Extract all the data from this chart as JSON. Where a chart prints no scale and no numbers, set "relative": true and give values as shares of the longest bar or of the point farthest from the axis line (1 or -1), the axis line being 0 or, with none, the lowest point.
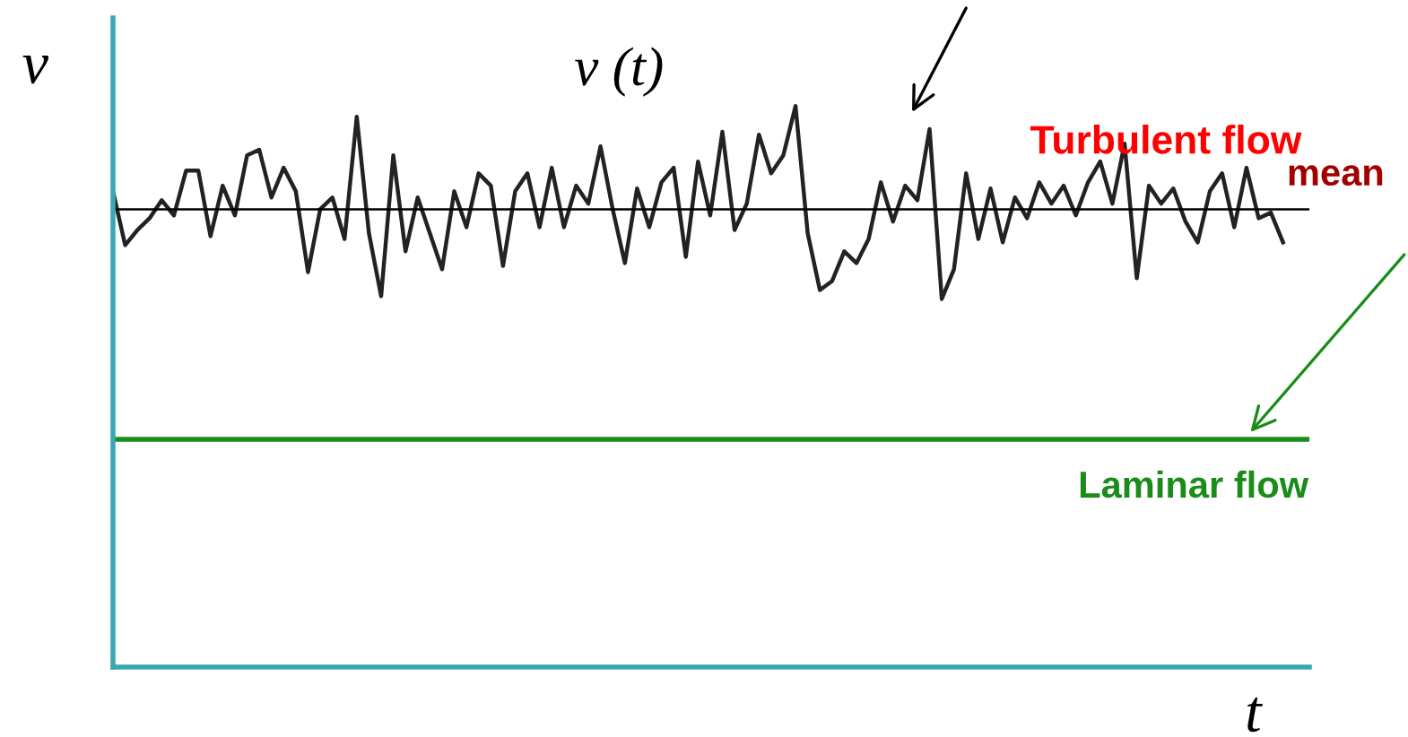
{
  "chart_data": {
    "type": "line",
    "relative": true,
    "xlabel": "t",
    "ylabel": "v",
    "marker": "none",
    "line_style": "solid",
    "categories": [
      null,
      null,
      null,
      null,
      null,
      null,
      null,
      null,
      null,
      null,
      null,
      null,
      null,
      null,
      null,
      null,
      null,
      null,
      null,
      null,
      null,
      null,
      null,
      null,
      null,
      null,
      null,
      null,
      null,
      null,
      null,
      null,
      null,
      null,
      null,
      null,
      null,
      null,
      null,
      null,
      null,
      null,
      null,
      null,
      null,
      null,
      null,
      null,
      null,
      null,
      null,
      null,
      null,
      null,
      null,
      null,
      null,
      null,
      null,
      null,
      null,
      null,
      null,
      null,
      null,
      null,
      null,
      null,
      null,
      null,
      null,
      null,
      null,
      null,
      null,
      null,
      null,
      null,
      null,
      null,
      null,
      null,
      null,
      null,
      null,
      null,
      null,
      null,
      null,
      null,
      null,
      null,
      null,
      null,
      null,
      null,
      null
    ],
    "annotations": [
      "v (t)",
      "Turbulent flow"
    ],
    "ref_lines": [
      {
        "axis": "y",
        "value": 0.816,
        "label": "mean",
        "color": "#000000"
      },
      {
        "axis": "y",
        "value": 0.406,
        "label": "Laminar flow",
        "color": "#1a8c1a"
      }
    ],
    "series": [
      {
        "color": "#222222",
        "values": [
          0.848,
          0.752,
          0.779,
          0.8,
          0.832,
          0.805,
          0.885,
          0.885,
          0.768,
          0.858,
          0.805,
          0.912,
          0.922,
          0.837,
          0.89,
          0.848,
          0.704,
          0.816,
          0.837,
          0.763,
          0.981,
          0.773,
          0.661,
          0.912,
          0.741,
          0.837,
          0.773,
          0.709,
          0.848,
          0.784,
          0.88,
          0.858,
          0.715,
          0.848,
          0.88,
          0.784,
          0.89,
          0.784,
          0.858,
          0.826,
          0.928,
          0.816,
          0.72,
          0.853,
          0.784,
          0.864,
          0.89,
          0.731,
          0.901,
          0.805,
          0.954,
          0.779,
          0.826,
          0.949,
          0.88,
          0.912,
          1,
          0.773,
          0.672,
          0.688,
          0.741,
          0.72,
          0.763,
          0.864,
          0.794,
          0.858,
          0.832,
          0.959,
          0.656,
          0.709,
          0.88,
          0.763,
          0.853,
          0.757,
          0.837,
          0.8,
          0.864,
          0.826,
          0.858,
          0.805,
          0.864,
          0.901,
          0.826,
          0.933,
          0.693,
          0.858,
          0.826,
          0.853,
          0.794,
          0.757,
          0.848,
          0.88,
          0.784,
          0.89,
          0.8,
          0.81,
          0.757
        ]
      }
    ]
  }
}
